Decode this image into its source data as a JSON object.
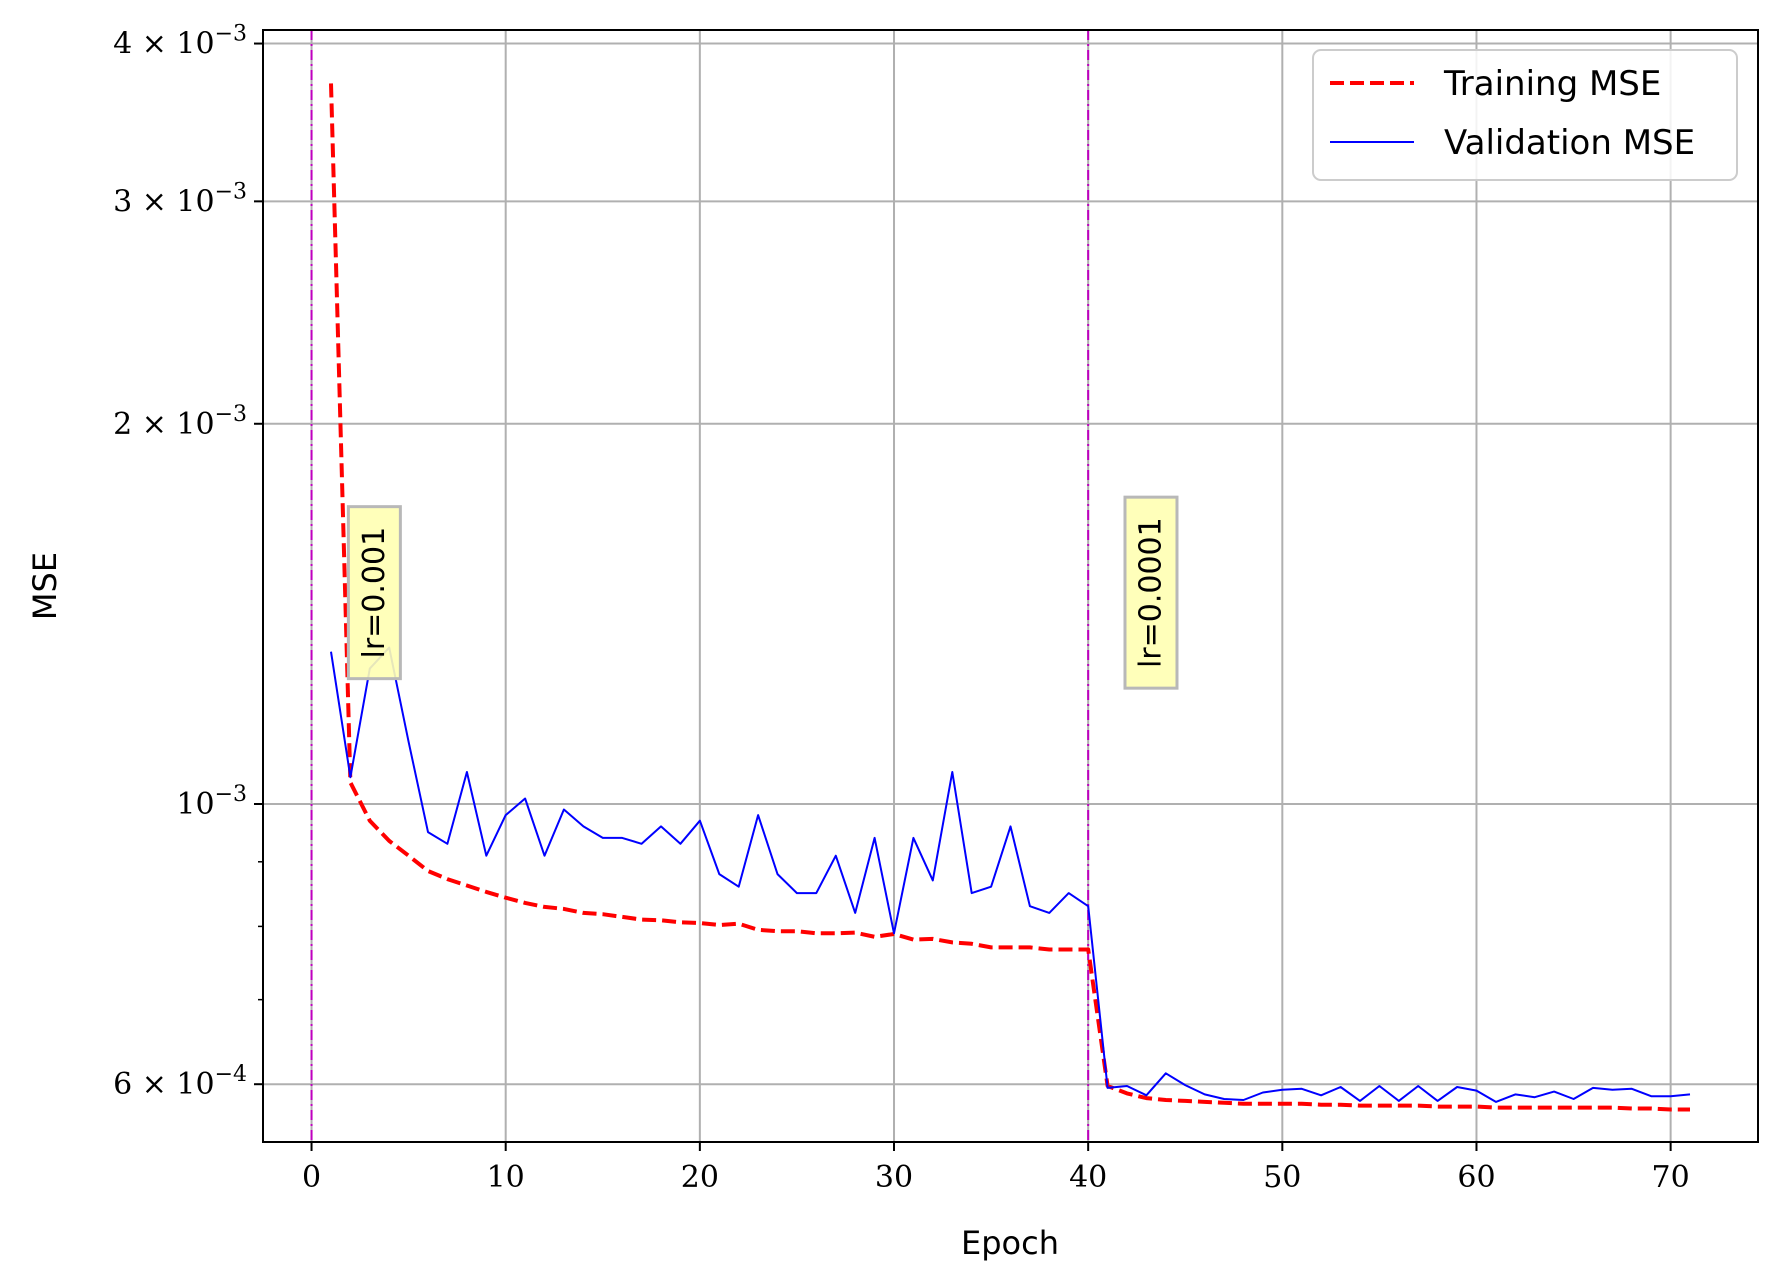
{
  "chart_data": {
    "type": "line",
    "title": "",
    "xlabel": "Epoch",
    "ylabel": "MSE",
    "xlim": [
      -2.5,
      74.5
    ],
    "ylim": [
      0.00054,
      0.0041
    ],
    "yscale": "log",
    "grid": true,
    "legend_position": "top-right",
    "x_ticks": [
      0,
      10,
      20,
      30,
      40,
      50,
      60,
      70
    ],
    "x_tick_labels": [
      "0",
      "10",
      "20",
      "30",
      "40",
      "50",
      "60",
      "70"
    ],
    "y_ticks": [
      0.0006,
      0.001,
      0.002,
      0.003,
      0.004
    ],
    "y_tick_labels": [
      {
        "mant": "6 × 10",
        "exp": "−4"
      },
      {
        "mant": "10",
        "exp": "−3"
      },
      {
        "mant": "2 × 10",
        "exp": "−3"
      },
      {
        "mant": "3 × 10",
        "exp": "−3"
      },
      {
        "mant": "4 × 10",
        "exp": "−3"
      }
    ],
    "y_minor_ticks": [
      0.0007,
      0.0008,
      0.0009
    ],
    "series": [
      {
        "name": "Training MSE",
        "color": "#ff0000",
        "style": "dashed",
        "x": [
          1,
          2,
          3,
          4,
          5,
          6,
          7,
          8,
          9,
          10,
          11,
          12,
          13,
          14,
          15,
          16,
          17,
          18,
          19,
          20,
          21,
          22,
          23,
          24,
          25,
          26,
          27,
          28,
          29,
          30,
          31,
          32,
          33,
          34,
          35,
          36,
          37,
          38,
          39,
          40,
          41,
          42,
          43,
          44,
          45,
          46,
          47,
          48,
          49,
          50,
          51,
          52,
          53,
          54,
          55,
          56,
          57,
          58,
          59,
          60,
          61,
          62,
          63,
          64,
          65,
          66,
          67,
          68,
          69,
          70,
          71
        ],
        "y": [
          0.00372,
          0.00104,
          0.00097,
          0.000935,
          0.00091,
          0.000885,
          0.000872,
          0.000862,
          0.000852,
          0.000843,
          0.000835,
          0.000829,
          0.000826,
          0.00082,
          0.000818,
          0.000814,
          0.00081,
          0.000809,
          0.000806,
          0.000805,
          0.000802,
          0.000804,
          0.000795,
          0.000793,
          0.000793,
          0.00079,
          0.00079,
          0.000791,
          0.000785,
          0.000789,
          0.000781,
          0.000782,
          0.000777,
          0.000775,
          0.00077,
          0.00077,
          0.00077,
          0.000767,
          0.000767,
          0.000767,
          0.000598,
          0.00059,
          0.000585,
          0.000583,
          0.000582,
          0.000581,
          0.00058,
          0.000579,
          0.000579,
          0.000579,
          0.000579,
          0.000578,
          0.000578,
          0.000577,
          0.000577,
          0.000577,
          0.000577,
          0.000576,
          0.000576,
          0.000576,
          0.000575,
          0.000575,
          0.000575,
          0.000575,
          0.000575,
          0.000575,
          0.000575,
          0.000574,
          0.000574,
          0.000573,
          0.000573
        ]
      },
      {
        "name": "Validation MSE",
        "color": "#0000ff",
        "style": "solid",
        "x": [
          1,
          2,
          3,
          4,
          5,
          6,
          7,
          8,
          9,
          10,
          11,
          12,
          13,
          14,
          15,
          16,
          17,
          18,
          19,
          20,
          21,
          22,
          23,
          24,
          25,
          26,
          27,
          28,
          29,
          30,
          31,
          32,
          33,
          34,
          35,
          36,
          37,
          38,
          39,
          40,
          41,
          42,
          43,
          44,
          45,
          46,
          47,
          48,
          49,
          50,
          51,
          52,
          53,
          54,
          55,
          56,
          57,
          58,
          59,
          60,
          61,
          62,
          63,
          64,
          65,
          66,
          67,
          68,
          69,
          70,
          71
        ],
        "y": [
          0.00132,
          0.00105,
          0.00128,
          0.00133,
          0.00112,
          0.00095,
          0.00093,
          0.00106,
          0.00091,
          0.00098,
          0.00101,
          0.00091,
          0.00099,
          0.00096,
          0.00094,
          0.00094,
          0.00093,
          0.00096,
          0.00093,
          0.00097,
          0.00088,
          0.00086,
          0.00098,
          0.00088,
          0.00085,
          0.00085,
          0.00091,
          0.00082,
          0.00094,
          0.00079,
          0.00094,
          0.00087,
          0.00106,
          0.00085,
          0.00086,
          0.00096,
          0.00083,
          0.00082,
          0.00085,
          0.00083,
          0.000596,
          0.000598,
          0.000588,
          0.000612,
          0.000599,
          0.000589,
          0.000584,
          0.000583,
          0.000591,
          0.000594,
          0.000595,
          0.000588,
          0.000597,
          0.000582,
          0.000598,
          0.000582,
          0.000598,
          0.000582,
          0.000597,
          0.000593,
          0.000581,
          0.000589,
          0.000586,
          0.000592,
          0.000584,
          0.000596,
          0.000594,
          0.000595,
          0.000587,
          0.000587,
          0.000589
        ]
      }
    ],
    "vlines": [
      {
        "x": 0,
        "color": "#bf00bf",
        "style": "dashdot"
      },
      {
        "x": 40,
        "color": "#bf00bf",
        "style": "dashdot"
      }
    ],
    "annotations": [
      {
        "text": "lr=0.001",
        "x": 2,
        "y": 0.00147,
        "rotation": 90,
        "box_color": "#ffffb3"
      },
      {
        "text": "lr=0.0001",
        "x": 42,
        "y": 0.00147,
        "rotation": 90,
        "box_color": "#ffffb3"
      }
    ]
  }
}
